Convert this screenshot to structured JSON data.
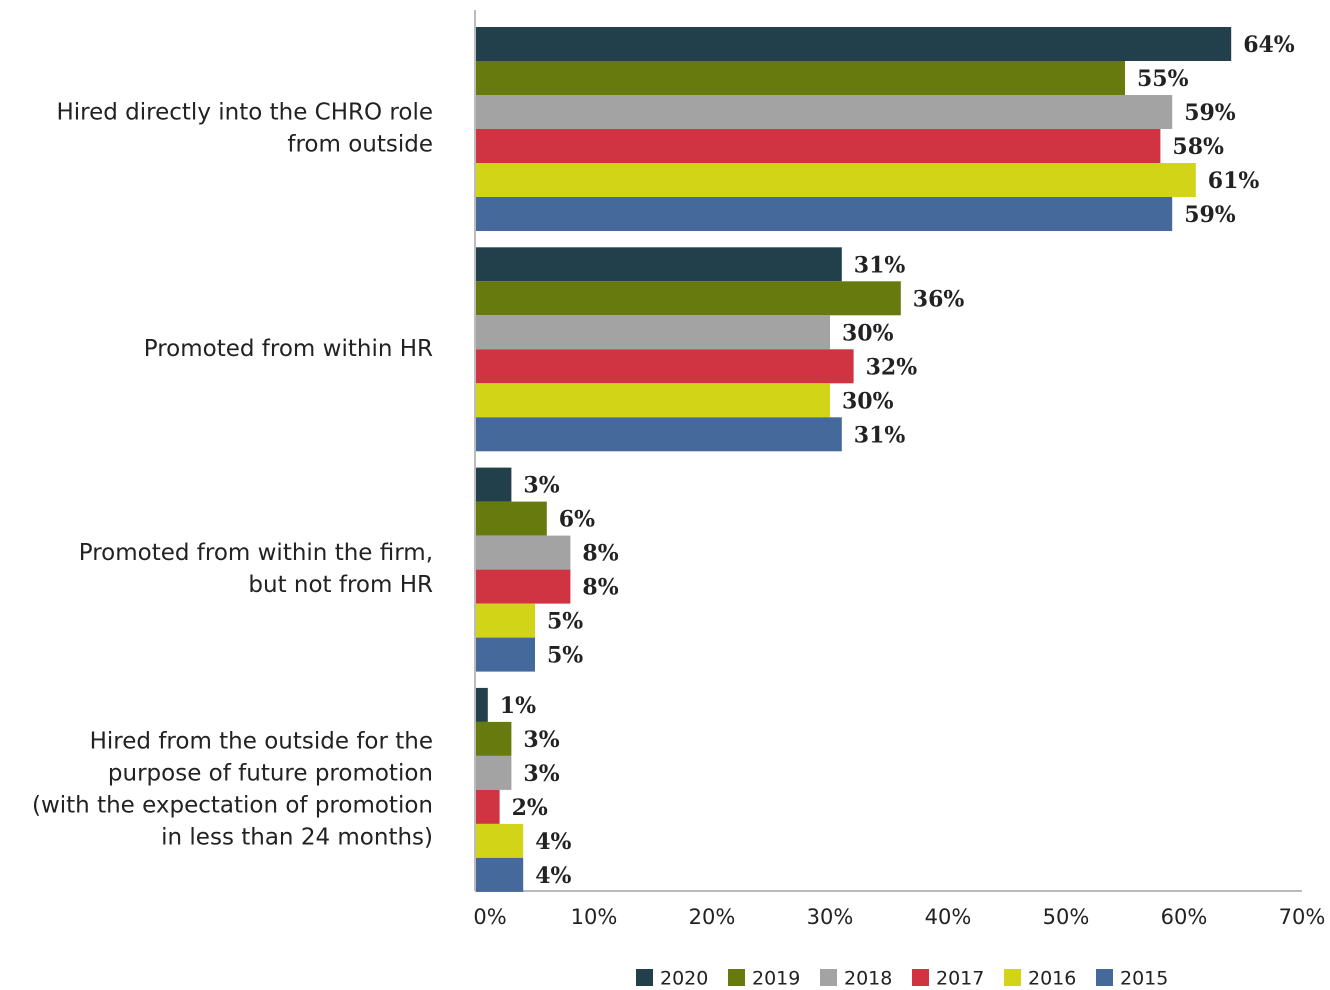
{
  "chart_data": {
    "type": "hbar",
    "categories": [
      [
        "Hired directly into the CHRO role",
        "from outside"
      ],
      [
        "Promoted from within HR"
      ],
      [
        "Promoted from within the firm,",
        "but not from HR"
      ],
      [
        "Hired from the outside for the",
        "purpose of future promotion",
        "(with the expectation of promotion",
        "in less than 24 months)"
      ]
    ],
    "series": [
      {
        "name": "2020",
        "color": "#22404c",
        "values": [
          64,
          31,
          3,
          1
        ],
        "value_labels": [
          "64%",
          "31%",
          "3%",
          "1%"
        ]
      },
      {
        "name": "2019",
        "color": "#667a0d",
        "values": [
          55,
          36,
          6,
          3
        ],
        "value_labels": [
          "55%",
          "36%",
          "6%",
          "3%"
        ]
      },
      {
        "name": "2018",
        "color": "#a3a3a3",
        "values": [
          59,
          30,
          8,
          3
        ],
        "value_labels": [
          "59%",
          "30%",
          "8%",
          "3%"
        ]
      },
      {
        "name": "2017",
        "color": "#d03341",
        "values": [
          58,
          32,
          8,
          2
        ],
        "value_labels": [
          "58%",
          "32%",
          "8%",
          "2%"
        ]
      },
      {
        "name": "2016",
        "color": "#d1d417",
        "values": [
          61,
          30,
          5,
          4
        ],
        "value_labels": [
          "61%",
          "30%",
          "5%",
          "4%"
        ]
      },
      {
        "name": "2015",
        "color": "#46699c",
        "values": [
          59,
          31,
          5,
          4
        ],
        "value_labels": [
          "59%",
          "31%",
          "5%",
          "4%"
        ]
      }
    ],
    "xlim": [
      0,
      70
    ],
    "xticks": [
      {
        "value": 0,
        "label": "0%"
      },
      {
        "value": 10,
        "label": "10%"
      },
      {
        "value": 20,
        "label": "20%"
      },
      {
        "value": 30,
        "label": "30%"
      },
      {
        "value": 40,
        "label": "40%"
      },
      {
        "value": 50,
        "label": "50%"
      },
      {
        "value": 60,
        "label": "60%"
      },
      {
        "value": 70,
        "label": "70%"
      }
    ],
    "grid": false,
    "legend": "bottom"
  }
}
